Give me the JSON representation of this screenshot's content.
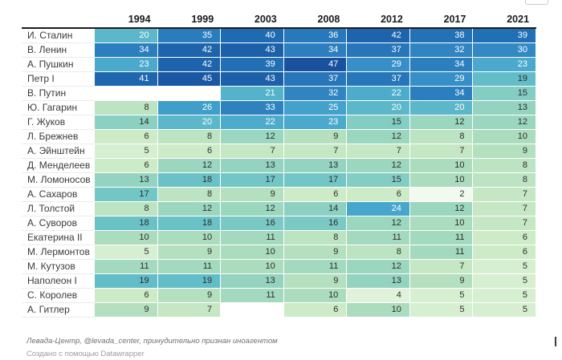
{
  "chart_data": {
    "type": "heatmap",
    "columns": [
      "1994",
      "1999",
      "2003",
      "2008",
      "2012",
      "2017",
      "2021"
    ],
    "rows": [
      {
        "name": "И. Сталин",
        "values": [
          20,
          35,
          40,
          36,
          42,
          38,
          39
        ]
      },
      {
        "name": "В. Ленин",
        "values": [
          34,
          42,
          43,
          34,
          37,
          32,
          30
        ]
      },
      {
        "name": "А. Пушкин",
        "values": [
          23,
          42,
          39,
          47,
          29,
          34,
          23
        ]
      },
      {
        "name": "Петр I",
        "values": [
          41,
          45,
          43,
          37,
          37,
          29,
          19
        ]
      },
      {
        "name": "В. Путин",
        "values": [
          null,
          null,
          21,
          32,
          22,
          34,
          15
        ]
      },
      {
        "name": "Ю. Гагарин",
        "values": [
          8,
          26,
          33,
          25,
          20,
          20,
          13
        ]
      },
      {
        "name": "Г. Жуков",
        "values": [
          14,
          20,
          22,
          23,
          15,
          12,
          12
        ]
      },
      {
        "name": "Л. Брежнев",
        "values": [
          6,
          8,
          12,
          9,
          12,
          8,
          10
        ]
      },
      {
        "name": "А. Эйнштейн",
        "values": [
          5,
          6,
          7,
          7,
          7,
          7,
          9
        ]
      },
      {
        "name": "Д. Менделеев",
        "values": [
          6,
          12,
          13,
          13,
          12,
          10,
          8
        ]
      },
      {
        "name": "М. Ломоносов",
        "values": [
          13,
          18,
          17,
          17,
          15,
          10,
          8
        ]
      },
      {
        "name": "А. Сахаров",
        "values": [
          17,
          8,
          9,
          6,
          6,
          2,
          7
        ]
      },
      {
        "name": "Л. Толстой",
        "values": [
          8,
          12,
          12,
          14,
          24,
          12,
          7
        ]
      },
      {
        "name": "А. Суворов",
        "values": [
          18,
          18,
          16,
          16,
          12,
          10,
          7
        ]
      },
      {
        "name": "Екатерина II",
        "values": [
          10,
          10,
          11,
          8,
          11,
          11,
          6
        ]
      },
      {
        "name": "М. Лермонтов",
        "values": [
          5,
          9,
          10,
          9,
          8,
          11,
          6
        ]
      },
      {
        "name": "М. Кутузов",
        "values": [
          11,
          11,
          10,
          11,
          12,
          7,
          5
        ]
      },
      {
        "name": "Наполеон I",
        "values": [
          19,
          19,
          13,
          9,
          13,
          9,
          5
        ]
      },
      {
        "name": "С. Королев",
        "values": [
          6,
          9,
          11,
          10,
          4,
          5,
          5
        ]
      },
      {
        "name": "А. Гитлер",
        "values": [
          9,
          7,
          null,
          6,
          10,
          5,
          5
        ]
      }
    ],
    "value_range": [
      2,
      47
    ],
    "color_stops": [
      [
        2,
        "#f2f9ee"
      ],
      [
        6,
        "#cdebc6"
      ],
      [
        10,
        "#abdcbd"
      ],
      [
        14,
        "#8bd0c1"
      ],
      [
        18,
        "#6ac2c7"
      ],
      [
        22,
        "#4daccc"
      ],
      [
        26,
        "#3f9fca"
      ],
      [
        30,
        "#3389c4"
      ],
      [
        35,
        "#2a7dbd"
      ],
      [
        40,
        "#1f6bb2"
      ],
      [
        47,
        "#19519e"
      ]
    ],
    "white_text_threshold": 20,
    "grid": "1px white gaps between cells",
    "legend_position": "none",
    "title": "",
    "xlabel": "",
    "ylabel": ""
  },
  "footer": {
    "source_note": "Левада-Центр, @levada_center, принудительно признан иноагентом",
    "attribution": "Создано с помощью Datawrapper"
  }
}
